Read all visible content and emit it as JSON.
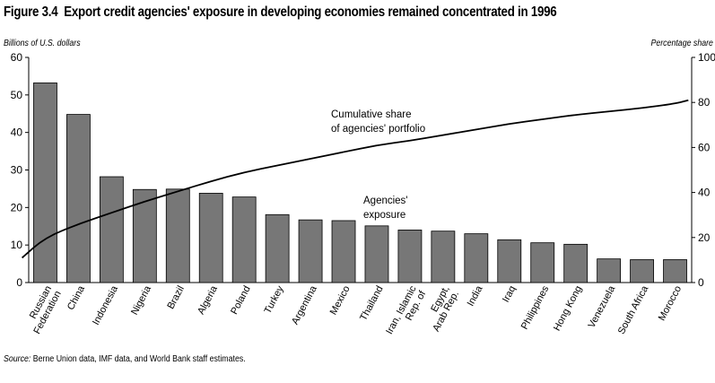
{
  "figure_label": "Figure 3.4",
  "source": {
    "prefix": "Source:",
    "text": "Berne Union data, IMF data, and World Bank staff estimates."
  },
  "chart_data": {
    "type": "bar",
    "title": "Export credit agencies' exposure in developing economies remained concentrated in 1996",
    "ylabel": "Billions of U.S. dollars",
    "y2label": "Percentage share",
    "ylim": [
      0,
      60
    ],
    "y2lim": [
      0,
      100
    ],
    "yticks": [
      0,
      10,
      20,
      30,
      40,
      50,
      60
    ],
    "y2ticks": [
      0,
      20,
      40,
      60,
      80,
      100
    ],
    "grid": false,
    "categories": [
      [
        "Russian",
        "Federation"
      ],
      [
        "China"
      ],
      [
        "Indonesia"
      ],
      [
        "Nigeria"
      ],
      [
        "Brazil"
      ],
      [
        "Algeria"
      ],
      [
        "Poland"
      ],
      [
        "Turkey"
      ],
      [
        "Argentina"
      ],
      [
        "Mexico"
      ],
      [
        "Thailand"
      ],
      [
        "Iran, Islamic",
        "Rep. of"
      ],
      [
        "Egypt,",
        "Arab Rep."
      ],
      [
        "India"
      ],
      [
        "Iraq"
      ],
      [
        "Philippines"
      ],
      [
        "Hong Kong"
      ],
      [
        "Venezuela"
      ],
      [
        "South Africa"
      ],
      [
        "Morocco"
      ]
    ],
    "series": [
      {
        "name": "Agencies' exposure",
        "label_lines": [
          "Agencies'",
          "exposure"
        ],
        "type": "bar",
        "axis": "left",
        "color": "#777777",
        "values": [
          53.2,
          44.8,
          28.2,
          24.8,
          24.9,
          23.8,
          22.8,
          18.1,
          16.7,
          16.5,
          15.1,
          14.0,
          13.7,
          13.0,
          11.4,
          10.6,
          10.2,
          6.3,
          6.1,
          6.1
        ]
      },
      {
        "name": "Cumulative share of agencies' portfolio",
        "label_lines": [
          "Cumulative share",
          "of agencies' portfolio"
        ],
        "type": "line",
        "axis": "right",
        "color": "#000000",
        "x": [
          -0.7,
          0,
          1,
          2,
          3,
          4,
          5,
          6,
          7,
          8,
          9,
          10,
          11,
          12,
          13,
          14,
          15,
          16,
          17,
          18,
          19,
          19.4
        ],
        "values": [
          11,
          20,
          26,
          31,
          36,
          40.5,
          45,
          49,
          52,
          55,
          58,
          61,
          63,
          65.5,
          68,
          70.5,
          72.5,
          74.5,
          76,
          77.5,
          79.5,
          81
        ]
      }
    ]
  }
}
